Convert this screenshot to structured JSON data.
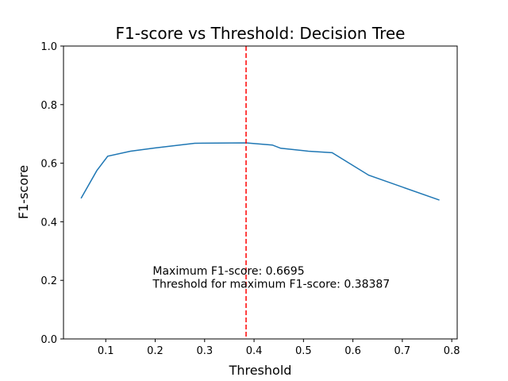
{
  "chart_data": {
    "type": "line",
    "title": "F1-score vs Threshold:  Decision Tree",
    "xlabel": "Threshold",
    "ylabel": "F1-score",
    "xlim": [
      0.0145,
      0.811
    ],
    "ylim": [
      0.0,
      1.0
    ],
    "xticks": [
      0.1,
      0.2,
      0.3,
      0.4,
      0.5,
      0.6,
      0.7,
      0.8
    ],
    "xtick_labels": [
      "0.1",
      "0.2",
      "0.3",
      "0.4",
      "0.5",
      "0.6",
      "0.7",
      "0.8"
    ],
    "yticks": [
      0.0,
      0.2,
      0.4,
      0.6,
      0.8,
      1.0
    ],
    "ytick_labels": [
      "0.0",
      "0.2",
      "0.4",
      "0.6",
      "0.8",
      "1.0"
    ],
    "grid": false,
    "series": [
      {
        "color": "#1f77b4",
        "x": [
          0.05,
          0.082,
          0.104,
          0.15,
          0.2,
          0.28,
          0.38387,
          0.437,
          0.454,
          0.51,
          0.558,
          0.632,
          0.775
        ],
        "y": [
          0.48,
          0.575,
          0.624,
          0.641,
          0.652,
          0.668,
          0.6695,
          0.662,
          0.651,
          0.641,
          0.636,
          0.559,
          0.474
        ]
      }
    ],
    "vline": {
      "x": 0.38387,
      "color": "#ff0000",
      "style": "dashed"
    },
    "annotations": [
      {
        "text": "Maximum F1-score: 0.6695",
        "x": 0.195,
        "y": 0.22
      },
      {
        "text": "Threshold for maximum F1-score: 0.38387",
        "x": 0.195,
        "y": 0.175
      }
    ]
  }
}
